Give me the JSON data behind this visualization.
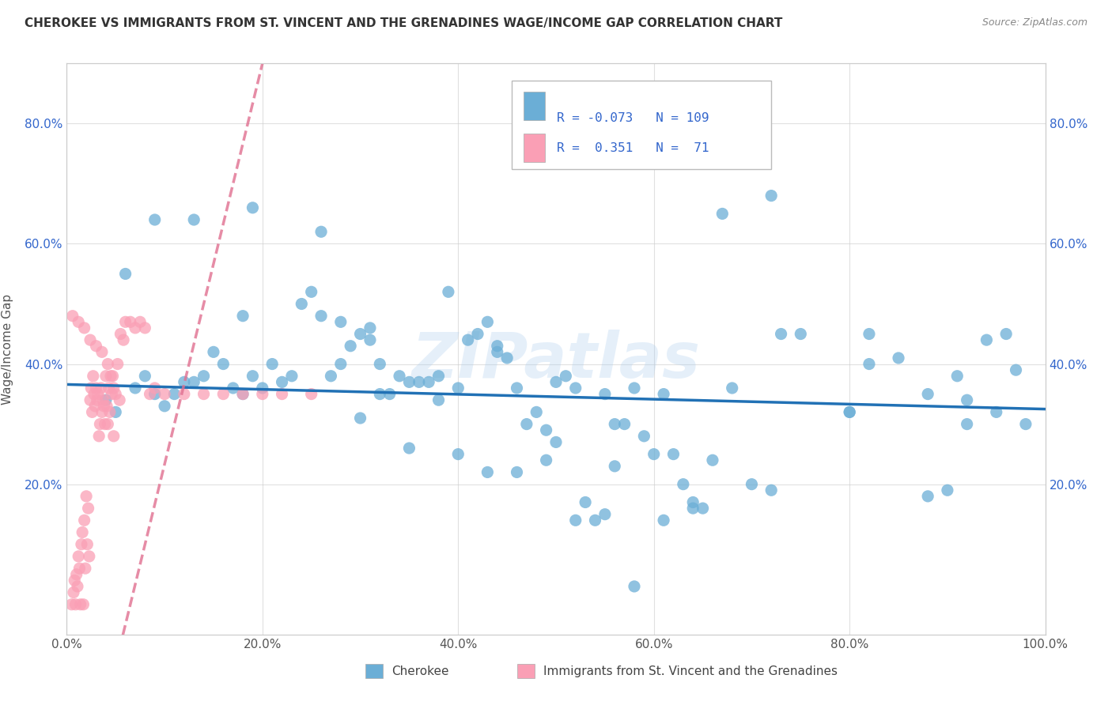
{
  "title": "CHEROKEE VS IMMIGRANTS FROM ST. VINCENT AND THE GRENADINES WAGE/INCOME GAP CORRELATION CHART",
  "source": "Source: ZipAtlas.com",
  "ylabel": "Wage/Income Gap",
  "xlim": [
    0.0,
    1.0
  ],
  "ylim": [
    -0.05,
    0.9
  ],
  "xticks": [
    0.0,
    0.2,
    0.4,
    0.6,
    0.8,
    1.0
  ],
  "xticklabels": [
    "0.0%",
    "20.0%",
    "40.0%",
    "60.0%",
    "80.0%",
    "100.0%"
  ],
  "yticks": [
    0.2,
    0.4,
    0.6,
    0.8
  ],
  "yticklabels": [
    "20.0%",
    "40.0%",
    "60.0%",
    "80.0%"
  ],
  "blue_color": "#6baed6",
  "pink_color": "#fa9fb5",
  "blue_line_color": "#2171b5",
  "pink_line_color": "#e07090",
  "legend_blue_r": "-0.073",
  "legend_blue_n": "109",
  "legend_pink_r": " 0.351",
  "legend_pink_n": " 71",
  "legend_text_color": "#3366cc",
  "watermark": "ZIPatlas",
  "title_color": "#333333",
  "source_color": "#888888",
  "ylabel_color": "#555555",
  "tick_color": "#3366cc",
  "grid_color": "#cccccc",
  "blue_scatter_x": [
    0.04,
    0.05,
    0.07,
    0.08,
    0.09,
    0.1,
    0.11,
    0.12,
    0.13,
    0.14,
    0.15,
    0.16,
    0.17,
    0.18,
    0.19,
    0.2,
    0.21,
    0.22,
    0.23,
    0.25,
    0.26,
    0.27,
    0.28,
    0.29,
    0.3,
    0.31,
    0.32,
    0.33,
    0.34,
    0.35,
    0.36,
    0.37,
    0.38,
    0.39,
    0.4,
    0.41,
    0.42,
    0.43,
    0.44,
    0.45,
    0.46,
    0.47,
    0.48,
    0.49,
    0.5,
    0.51,
    0.52,
    0.53,
    0.54,
    0.55,
    0.56,
    0.57,
    0.58,
    0.59,
    0.6,
    0.61,
    0.62,
    0.63,
    0.64,
    0.65,
    0.66,
    0.68,
    0.7,
    0.72,
    0.73,
    0.75,
    0.8,
    0.82,
    0.85,
    0.88,
    0.9,
    0.92,
    0.94,
    0.96,
    0.98,
    0.09,
    0.13,
    0.19,
    0.24,
    0.28,
    0.3,
    0.32,
    0.35,
    0.38,
    0.4,
    0.43,
    0.46,
    0.49,
    0.52,
    0.55,
    0.58,
    0.61,
    0.64,
    0.8,
    0.82,
    0.88,
    0.91,
    0.92,
    0.95,
    0.97,
    0.06,
    0.18,
    0.26,
    0.31,
    0.44,
    0.5,
    0.56,
    0.67,
    0.72
  ],
  "blue_scatter_y": [
    0.34,
    0.32,
    0.36,
    0.38,
    0.35,
    0.33,
    0.35,
    0.37,
    0.37,
    0.38,
    0.42,
    0.4,
    0.36,
    0.35,
    0.38,
    0.36,
    0.4,
    0.37,
    0.38,
    0.52,
    0.48,
    0.38,
    0.4,
    0.43,
    0.45,
    0.46,
    0.4,
    0.35,
    0.38,
    0.37,
    0.37,
    0.37,
    0.34,
    0.52,
    0.36,
    0.44,
    0.45,
    0.47,
    0.43,
    0.41,
    0.36,
    0.3,
    0.32,
    0.29,
    0.27,
    0.38,
    0.36,
    0.17,
    0.14,
    0.35,
    0.3,
    0.3,
    0.36,
    0.28,
    0.25,
    0.35,
    0.25,
    0.2,
    0.17,
    0.16,
    0.24,
    0.36,
    0.2,
    0.19,
    0.45,
    0.45,
    0.32,
    0.4,
    0.41,
    0.18,
    0.19,
    0.34,
    0.44,
    0.45,
    0.3,
    0.64,
    0.64,
    0.66,
    0.5,
    0.47,
    0.31,
    0.35,
    0.26,
    0.38,
    0.25,
    0.22,
    0.22,
    0.24,
    0.14,
    0.15,
    0.03,
    0.14,
    0.16,
    0.32,
    0.45,
    0.35,
    0.38,
    0.3,
    0.32,
    0.39,
    0.55,
    0.48,
    0.62,
    0.44,
    0.42,
    0.37,
    0.23,
    0.65,
    0.68
  ],
  "pink_scatter_x": [
    0.005,
    0.007,
    0.008,
    0.009,
    0.01,
    0.011,
    0.012,
    0.013,
    0.014,
    0.015,
    0.016,
    0.017,
    0.018,
    0.019,
    0.02,
    0.021,
    0.022,
    0.023,
    0.024,
    0.025,
    0.026,
    0.027,
    0.028,
    0.029,
    0.03,
    0.031,
    0.032,
    0.033,
    0.034,
    0.035,
    0.036,
    0.037,
    0.038,
    0.039,
    0.04,
    0.041,
    0.042,
    0.043,
    0.044,
    0.045,
    0.046,
    0.047,
    0.048,
    0.05,
    0.052,
    0.055,
    0.058,
    0.06,
    0.065,
    0.07,
    0.075,
    0.08,
    0.085,
    0.09,
    0.1,
    0.12,
    0.14,
    0.16,
    0.18,
    0.2,
    0.22,
    0.25,
    0.006,
    0.012,
    0.018,
    0.024,
    0.03,
    0.036,
    0.042,
    0.048,
    0.054
  ],
  "pink_scatter_y": [
    0.0,
    0.02,
    0.04,
    0.0,
    0.05,
    0.03,
    0.08,
    0.06,
    0.0,
    0.1,
    0.12,
    0.0,
    0.14,
    0.06,
    0.18,
    0.1,
    0.16,
    0.08,
    0.34,
    0.36,
    0.32,
    0.38,
    0.35,
    0.33,
    0.36,
    0.34,
    0.35,
    0.28,
    0.3,
    0.36,
    0.32,
    0.34,
    0.33,
    0.3,
    0.38,
    0.33,
    0.3,
    0.36,
    0.32,
    0.38,
    0.35,
    0.38,
    0.28,
    0.35,
    0.4,
    0.45,
    0.44,
    0.47,
    0.47,
    0.46,
    0.47,
    0.46,
    0.35,
    0.36,
    0.35,
    0.35,
    0.35,
    0.35,
    0.35,
    0.35,
    0.35,
    0.35,
    0.48,
    0.47,
    0.46,
    0.44,
    0.43,
    0.42,
    0.4,
    0.36,
    0.34
  ]
}
